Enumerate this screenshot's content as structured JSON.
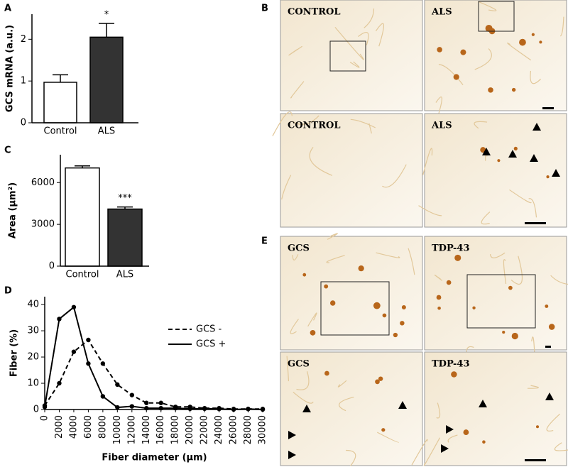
{
  "panel_labels": [
    "A",
    "B",
    "C",
    "D",
    "E"
  ],
  "chart_data": [
    {
      "type": "bar",
      "ylabel": "GCS mRNA (a.u.)",
      "categories": [
        "Control",
        "ALS"
      ],
      "values": [
        0.97,
        2.05
      ],
      "errors": [
        0.18,
        0.33
      ],
      "colors": [
        "#ffffff",
        "#333333"
      ],
      "ylim": [
        0,
        2.6
      ],
      "yticks": [
        0,
        1,
        2
      ],
      "annotations": [
        null,
        "*"
      ]
    },
    {
      "type": "bar",
      "ylabel": "Area (µm²)",
      "categories": [
        "Control",
        "ALS"
      ],
      "values": [
        7050,
        4100
      ],
      "errors": [
        150,
        150
      ],
      "colors": [
        "#ffffff",
        "#333333"
      ],
      "ylim": [
        0,
        8000
      ],
      "yticks": [
        0,
        3000,
        6000
      ],
      "annotations": [
        null,
        "***"
      ]
    },
    {
      "type": "line",
      "xlabel": "Fiber diameter (µm)",
      "ylabel": "Fiber (%)",
      "x": [
        0,
        2000,
        4000,
        6000,
        8000,
        10000,
        12000,
        14000,
        16000,
        18000,
        20000,
        22000,
        24000,
        26000,
        28000,
        30000
      ],
      "series": [
        {
          "name": "GCS -",
          "color": "#000000",
          "dash": true,
          "values": [
            1.5,
            10,
            22,
            26.5,
            17.5,
            9.5,
            5.5,
            2.5,
            2.5,
            1,
            1,
            0.5,
            0.5,
            0.2,
            0.2,
            0.2
          ]
        },
        {
          "name": "GCS +",
          "color": "#000000",
          "dash": false,
          "values": [
            1,
            34.5,
            39,
            17.5,
            5,
            0.8,
            1.2,
            0.5,
            0.5,
            0.5,
            0.3,
            0.3,
            0.2,
            0,
            0.2,
            0
          ]
        }
      ],
      "xlim": [
        0,
        30000
      ],
      "xticks": [
        0,
        2000,
        4000,
        6000,
        8000,
        10000,
        12000,
        14000,
        16000,
        18000,
        20000,
        22000,
        24000,
        26000,
        28000,
        30000
      ],
      "ylim": [
        0,
        43
      ],
      "yticks": [
        0,
        10,
        20,
        30,
        40
      ]
    }
  ],
  "micrographs": {
    "B": [
      "CONTROL",
      "ALS",
      "CONTROL",
      "ALS"
    ],
    "E": [
      "GCS",
      "TDP-43",
      "GCS",
      "TDP-43"
    ]
  }
}
